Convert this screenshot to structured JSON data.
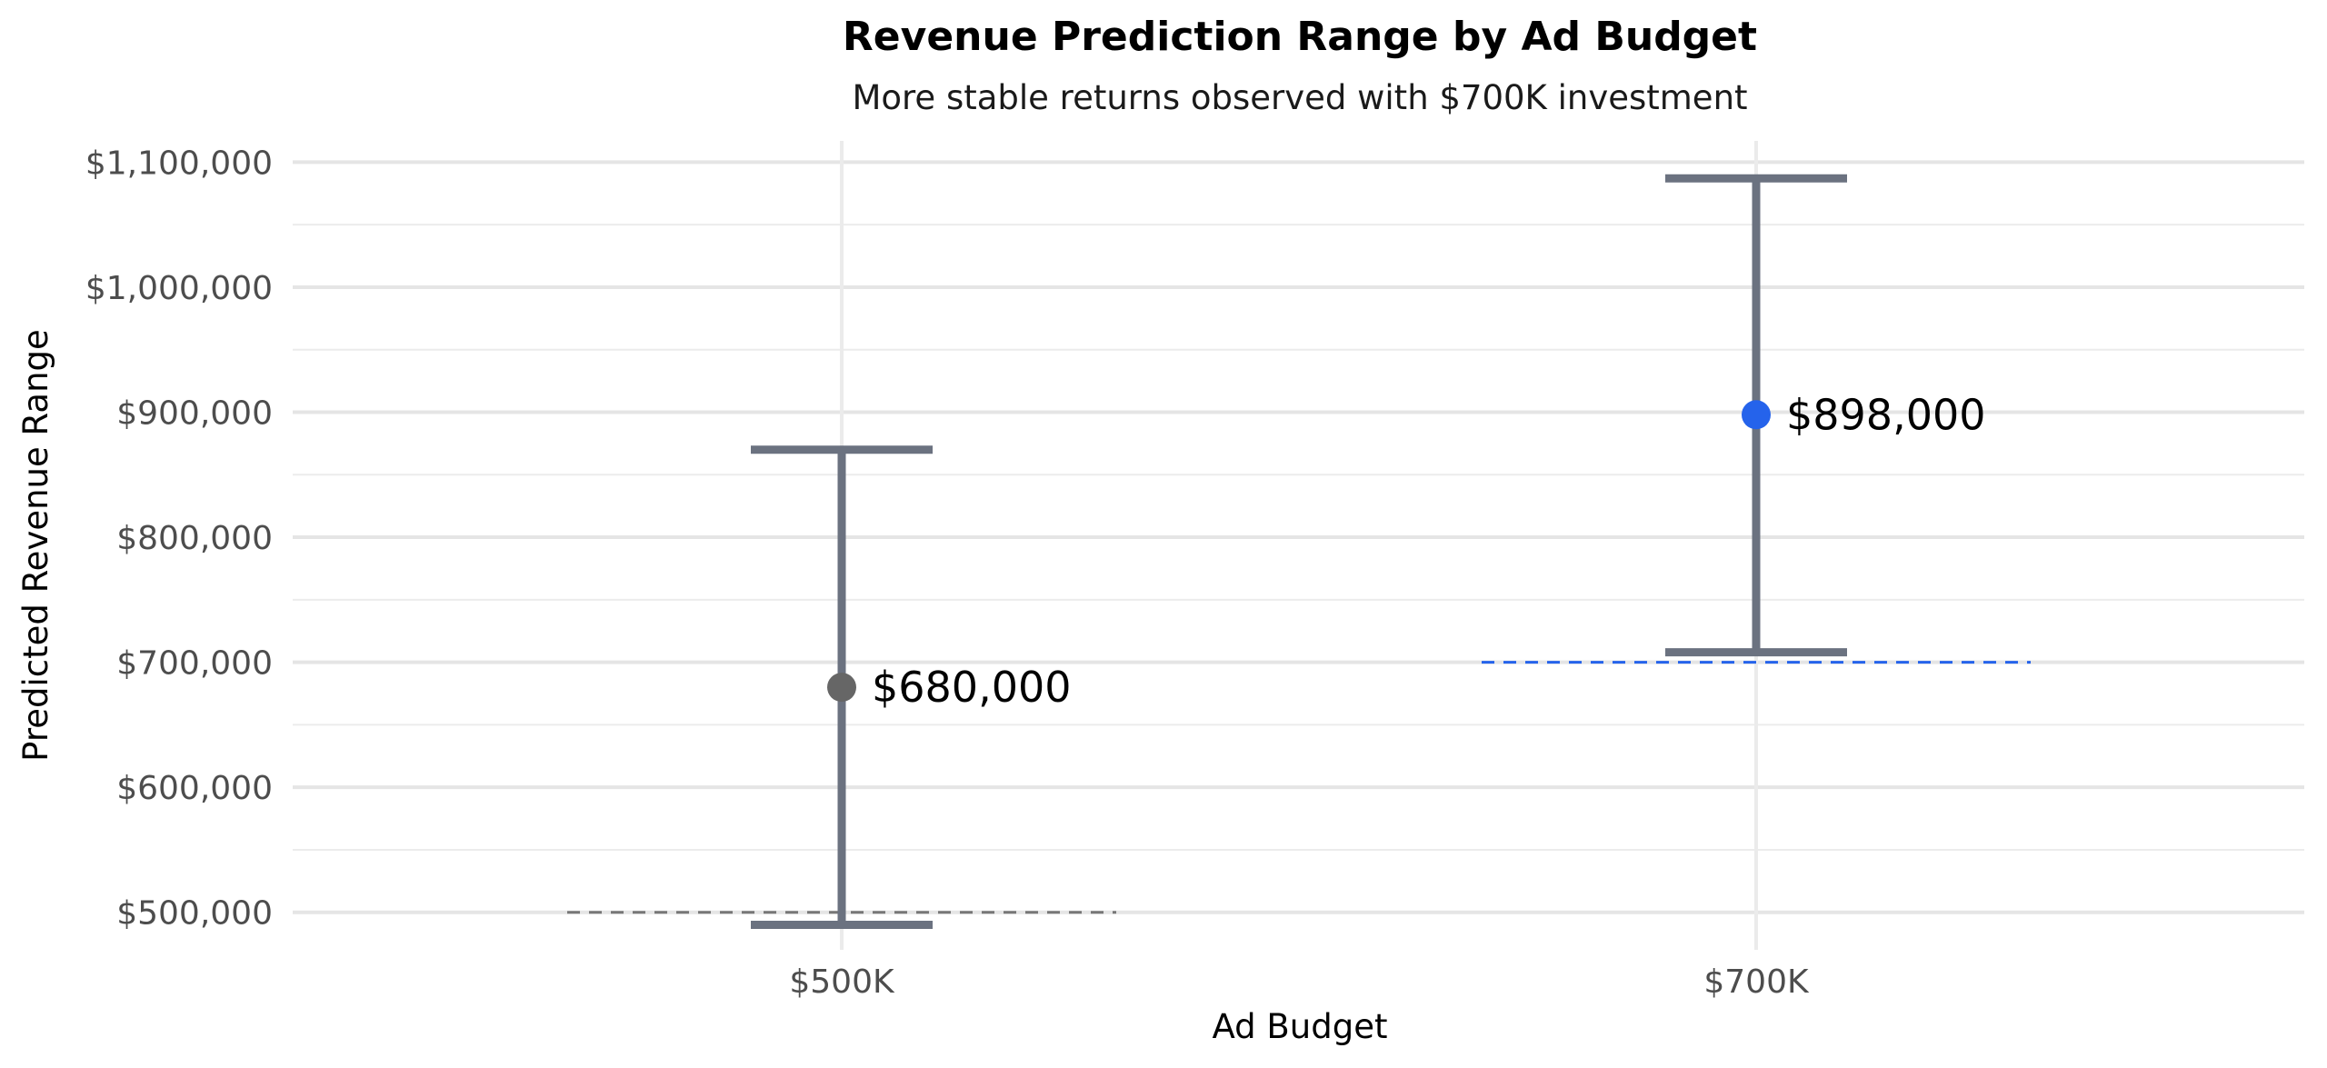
{
  "chart_data": {
    "type": "errorbar",
    "title": "Revenue Prediction Range by Ad Budget",
    "subtitle": "More stable returns observed with $700K investment",
    "xlabel": "Ad Budget",
    "ylabel": "Predicted Revenue Range",
    "categories": [
      "$500K",
      "$700K"
    ],
    "ylim": [
      470000,
      1117000
    ],
    "yticks": [
      500000,
      600000,
      700000,
      800000,
      900000,
      1000000,
      1100000
    ],
    "ytick_labels": [
      "$500,000",
      "$600,000",
      "$700,000",
      "$800,000",
      "$900,000",
      "$1,000,000",
      "$1,100,000"
    ],
    "grid": true,
    "series": [
      {
        "category": "$500K",
        "point": 680000,
        "lower": 490000,
        "upper": 870000,
        "point_label": "$680,000",
        "point_color": "#666666",
        "baseline": 500000,
        "baseline_color": "#777777"
      },
      {
        "category": "$700K",
        "point": 898000,
        "lower": 708000,
        "upper": 1087000,
        "point_label": "$898,000",
        "point_color": "#2563eb",
        "baseline": 700000,
        "baseline_color": "#2563eb"
      }
    ],
    "errorbar_color": "#6b7280"
  }
}
